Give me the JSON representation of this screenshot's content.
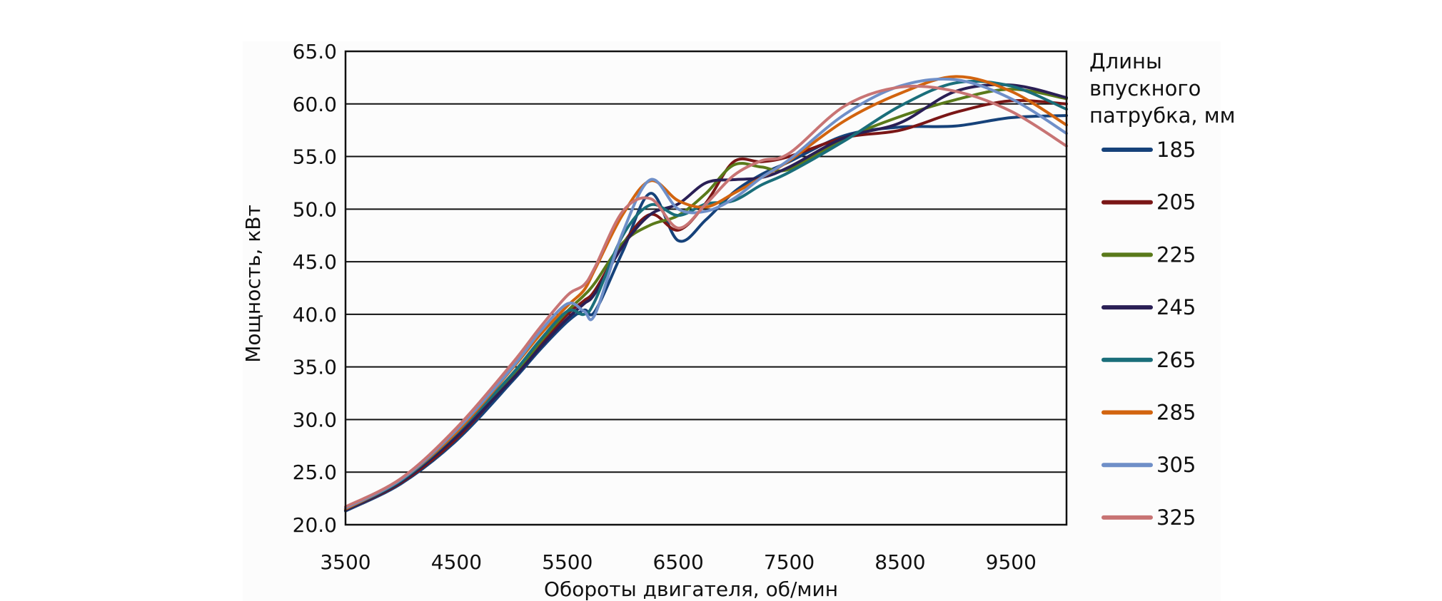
{
  "chart_data": {
    "type": "line",
    "xlabel": "Обороты двигателя, об/мин",
    "ylabel": "Мощность, кВт",
    "xlim": [
      3500,
      10000
    ],
    "ylim": [
      20.0,
      65.0
    ],
    "x_ticks": [
      "3500",
      "4500",
      "5500",
      "6500",
      "7500",
      "8500",
      "9500"
    ],
    "y_ticks": [
      "20.0",
      "25.0",
      "30.0",
      "35.0",
      "40.0",
      "45.0",
      "50.0",
      "55.0",
      "60.0",
      "65.0"
    ],
    "grid": "horizontal",
    "legend_title_lines": [
      "Длины",
      "впускного",
      "патрубка, мм"
    ],
    "legend_position": "right",
    "x": [
      3500,
      4000,
      4500,
      5000,
      5250,
      5500,
      5650,
      5750,
      6000,
      6250,
      6500,
      6750,
      7000,
      7250,
      7500,
      8000,
      8500,
      9000,
      9500,
      10000
    ],
    "series": [
      {
        "name": "185",
        "color": "#16427a",
        "values": [
          21.3,
          23.9,
          28.0,
          33.6,
          36.6,
          39.3,
          40.4,
          40.3,
          46.0,
          51.5,
          47.0,
          49.0,
          51.6,
          53.3,
          54.5,
          57.0,
          57.8,
          57.9,
          58.7,
          58.9
        ]
      },
      {
        "name": "205",
        "color": "#7a1616",
        "values": [
          21.4,
          24.0,
          28.2,
          34.0,
          37.1,
          40.0,
          41.3,
          42.3,
          46.7,
          49.5,
          48.0,
          50.6,
          54.5,
          54.5,
          55.0,
          56.8,
          57.5,
          59.2,
          60.3,
          60.0
        ]
      },
      {
        "name": "225",
        "color": "#5a7a1a",
        "values": [
          21.5,
          24.2,
          28.5,
          34.0,
          37.3,
          40.3,
          41.8,
          43.0,
          46.8,
          48.5,
          49.4,
          51.5,
          54.2,
          54.0,
          53.8,
          56.7,
          58.8,
          60.4,
          61.4,
          60.5
        ]
      },
      {
        "name": "245",
        "color": "#2a1f55",
        "values": [
          21.4,
          24.1,
          28.4,
          33.8,
          36.8,
          39.6,
          41.0,
          42.0,
          46.5,
          49.5,
          50.5,
          52.5,
          52.8,
          53.0,
          54.0,
          56.8,
          58.2,
          61.2,
          61.8,
          60.6
        ]
      },
      {
        "name": "265",
        "color": "#1a6e7a",
        "values": [
          21.5,
          24.2,
          28.7,
          34.3,
          37.5,
          40.3,
          40.0,
          41.3,
          47.5,
          50.4,
          49.4,
          50.5,
          50.8,
          52.3,
          53.5,
          56.5,
          59.8,
          62.0,
          61.7,
          59.5
        ]
      },
      {
        "name": "285",
        "color": "#d2640f",
        "values": [
          21.5,
          24.3,
          28.8,
          34.8,
          38.0,
          40.8,
          42.3,
          44.3,
          49.5,
          52.7,
          50.8,
          50.2,
          51.5,
          53.0,
          54.6,
          58.4,
          61.0,
          62.6,
          61.2,
          58.0
        ]
      },
      {
        "name": "305",
        "color": "#6f8fc8",
        "values": [
          21.6,
          24.3,
          29.0,
          34.9,
          38.3,
          41.0,
          40.3,
          40.0,
          47.8,
          52.8,
          50.0,
          49.8,
          51.0,
          53.0,
          54.7,
          59.0,
          61.7,
          62.3,
          60.5,
          57.2
        ]
      },
      {
        "name": "325",
        "color": "#c87474",
        "values": [
          21.7,
          24.4,
          29.2,
          35.3,
          38.7,
          41.8,
          42.8,
          44.5,
          49.8,
          51.0,
          48.2,
          50.5,
          53.2,
          54.6,
          55.3,
          59.8,
          61.6,
          61.2,
          59.3,
          56.0
        ]
      }
    ]
  }
}
